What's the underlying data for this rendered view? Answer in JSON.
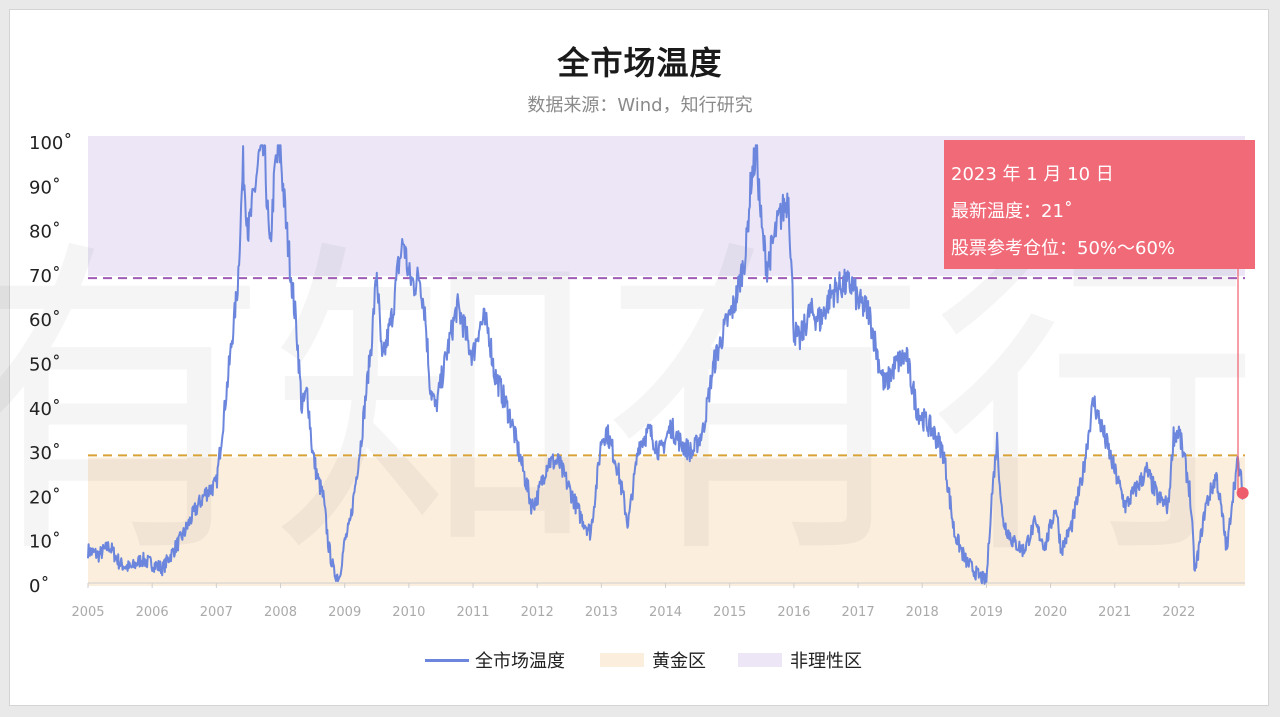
{
  "colors": {
    "line": "#6b86dc",
    "golden_fill": "#fbeedd",
    "golden_line": "#d9a136",
    "irrational_fill": "#ece6f7",
    "irrational_line": "#9f5bb5",
    "callout_bg": "#f06a78",
    "marker": "#ee5d6c"
  },
  "header": {
    "title": "全市场温度",
    "subtitle": "数据来源：Wind，知行研究"
  },
  "watermark": "有知有行",
  "callout": {
    "date": "2023 年 1 月 10 日",
    "temperature": "最新温度：21˚",
    "position": "股票参考仓位：50%～60%"
  },
  "legend": {
    "series": "全市场温度",
    "golden": "黄金区",
    "irrational": "非理性区"
  },
  "chart_data": {
    "type": "line",
    "title": "全市场温度",
    "subtitle": "数据来源：Wind，知行研究",
    "xlabel": "",
    "ylabel": "",
    "ylim": [
      0,
      100
    ],
    "y_ticks": [
      "0˚",
      "10˚",
      "20˚",
      "30˚",
      "40˚",
      "50˚",
      "60˚",
      "70˚",
      "80˚",
      "90˚",
      "100˚"
    ],
    "x_ticks": [
      "2005",
      "2006",
      "2007",
      "2008",
      "2009",
      "2010",
      "2011",
      "2012",
      "2013",
      "2014",
      "2015",
      "2016",
      "2017",
      "2018",
      "2019",
      "2020",
      "2021",
      "2022"
    ],
    "grid": false,
    "legend_position": "bottom",
    "bands": [
      {
        "name": "黄金区",
        "from": 0,
        "to": 29
      },
      {
        "name": "非理性区",
        "from": 70,
        "to": 100
      }
    ],
    "reference_lines": [
      29.5,
      69.5
    ],
    "series": [
      {
        "name": "全市场温度",
        "points": [
          [
            "2005-01",
            8
          ],
          [
            "2005-03",
            7
          ],
          [
            "2005-05",
            9
          ],
          [
            "2005-07",
            5
          ],
          [
            "2005-09",
            4
          ],
          [
            "2005-11",
            6
          ],
          [
            "2006-01",
            5
          ],
          [
            "2006-03",
            4
          ],
          [
            "2006-05",
            8
          ],
          [
            "2006-07",
            12
          ],
          [
            "2006-09",
            17
          ],
          [
            "2006-11",
            21
          ],
          [
            "2007-01",
            23
          ],
          [
            "2007-03",
            45
          ],
          [
            "2007-05",
            68
          ],
          [
            "2007-06",
            95
          ],
          [
            "2007-07",
            80
          ],
          [
            "2007-08",
            88
          ],
          [
            "2007-09",
            97
          ],
          [
            "2007-10",
            98
          ],
          [
            "2007-11",
            75
          ],
          [
            "2007-12",
            95
          ],
          [
            "2008-01",
            98
          ],
          [
            "2008-02",
            82
          ],
          [
            "2008-03",
            70
          ],
          [
            "2008-04",
            58
          ],
          [
            "2008-05",
            40
          ],
          [
            "2008-06",
            44
          ],
          [
            "2008-07",
            30
          ],
          [
            "2008-08",
            24
          ],
          [
            "2008-09",
            20
          ],
          [
            "2008-10",
            9
          ],
          [
            "2008-11",
            3
          ],
          [
            "2008-12",
            2
          ],
          [
            "2009-01",
            10
          ],
          [
            "2009-02",
            14
          ],
          [
            "2009-04",
            32
          ],
          [
            "2009-06",
            55
          ],
          [
            "2009-07",
            71
          ],
          [
            "2009-08",
            50
          ],
          [
            "2009-10",
            62
          ],
          [
            "2009-11",
            72
          ],
          [
            "2009-12",
            78
          ],
          [
            "2010-01",
            70
          ],
          [
            "2010-02",
            68
          ],
          [
            "2010-03",
            70
          ],
          [
            "2010-04",
            62
          ],
          [
            "2010-05",
            45
          ],
          [
            "2010-06",
            40
          ],
          [
            "2010-07",
            46
          ],
          [
            "2010-08",
            52
          ],
          [
            "2010-10",
            63
          ],
          [
            "2010-11",
            60
          ],
          [
            "2010-12",
            55
          ],
          [
            "2011-01",
            52
          ],
          [
            "2011-02",
            58
          ],
          [
            "2011-03",
            60
          ],
          [
            "2011-04",
            57
          ],
          [
            "2011-05",
            48
          ],
          [
            "2011-06",
            45
          ],
          [
            "2011-08",
            38
          ],
          [
            "2011-09",
            33
          ],
          [
            "2011-10",
            28
          ],
          [
            "2011-12",
            18
          ],
          [
            "2012-01",
            20
          ],
          [
            "2012-03",
            28
          ],
          [
            "2012-05",
            28
          ],
          [
            "2012-07",
            22
          ],
          [
            "2012-09",
            16
          ],
          [
            "2012-11",
            12
          ],
          [
            "2012-12",
            22
          ],
          [
            "2013-01",
            33
          ],
          [
            "2013-02",
            35
          ],
          [
            "2013-04",
            27
          ],
          [
            "2013-06",
            14
          ],
          [
            "2013-08",
            32
          ],
          [
            "2013-10",
            35
          ],
          [
            "2013-12",
            30
          ],
          [
            "2014-02",
            36
          ],
          [
            "2014-04",
            32
          ],
          [
            "2014-06",
            30
          ],
          [
            "2014-08",
            35
          ],
          [
            "2014-10",
            50
          ],
          [
            "2014-12",
            58
          ],
          [
            "2015-02",
            64
          ],
          [
            "2015-04",
            75
          ],
          [
            "2015-05",
            92
          ],
          [
            "2015-06",
            98
          ],
          [
            "2015-07",
            80
          ],
          [
            "2015-08",
            72
          ],
          [
            "2015-10",
            82
          ],
          [
            "2015-12",
            88
          ],
          [
            "2016-01",
            58
          ],
          [
            "2016-02",
            55
          ],
          [
            "2016-04",
            62
          ],
          [
            "2016-06",
            60
          ],
          [
            "2016-08",
            66
          ],
          [
            "2016-10",
            68
          ],
          [
            "2016-12",
            68
          ],
          [
            "2017-01",
            64
          ],
          [
            "2017-03",
            62
          ],
          [
            "2017-05",
            50
          ],
          [
            "2017-06",
            45
          ],
          [
            "2017-08",
            50
          ],
          [
            "2017-10",
            52
          ],
          [
            "2017-12",
            40
          ],
          [
            "2018-01",
            38
          ],
          [
            "2018-03",
            35
          ],
          [
            "2018-05",
            30
          ],
          [
            "2018-07",
            12
          ],
          [
            "2018-09",
            6
          ],
          [
            "2018-11",
            3
          ],
          [
            "2019-01",
            1
          ],
          [
            "2019-02",
            20
          ],
          [
            "2019-03",
            33
          ],
          [
            "2019-04",
            15
          ],
          [
            "2019-06",
            10
          ],
          [
            "2019-08",
            8
          ],
          [
            "2019-10",
            14
          ],
          [
            "2019-12",
            9
          ],
          [
            "2020-02",
            18
          ],
          [
            "2020-03",
            8
          ],
          [
            "2020-05",
            14
          ],
          [
            "2020-07",
            25
          ],
          [
            "2020-09",
            42
          ],
          [
            "2020-10",
            38
          ],
          [
            "2020-12",
            30
          ],
          [
            "2021-01",
            26
          ],
          [
            "2021-03",
            18
          ],
          [
            "2021-05",
            22
          ],
          [
            "2021-07",
            26
          ],
          [
            "2021-09",
            20
          ],
          [
            "2021-11",
            18
          ],
          [
            "2021-12",
            34
          ],
          [
            "2022-01",
            35
          ],
          [
            "2022-03",
            22
          ],
          [
            "2022-04",
            3
          ],
          [
            "2022-06",
            18
          ],
          [
            "2022-08",
            25
          ],
          [
            "2022-10",
            8
          ],
          [
            "2022-11",
            20
          ],
          [
            "2022-12",
            28
          ],
          [
            "2023-01",
            21
          ]
        ]
      }
    ],
    "latest": {
      "date": "2023-01-10",
      "value": 21
    }
  }
}
